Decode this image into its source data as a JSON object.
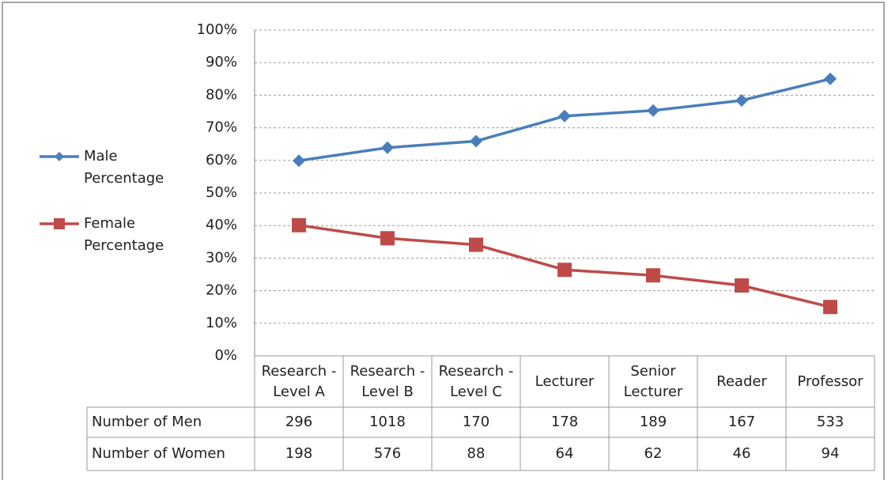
{
  "chart_data": {
    "type": "line",
    "categories": [
      "Research - Level A",
      "Research - Level B",
      "Research - Level C",
      "Lecturer",
      "Senior Lecturer",
      "Reader",
      "Professor"
    ],
    "series": [
      {
        "name": "Male Percentage",
        "color": "#4a7ebb",
        "marker": "diamond",
        "values": [
          59.9,
          63.9,
          65.9,
          73.6,
          75.3,
          78.4,
          85.0
        ]
      },
      {
        "name": "Female Percentage",
        "color": "#be4b48",
        "marker": "square",
        "values": [
          40.1,
          36.1,
          34.1,
          26.4,
          24.7,
          21.6,
          15.0
        ]
      }
    ],
    "ylim": [
      0,
      100
    ],
    "yticks": [
      {
        "value": 0,
        "label": "0%"
      },
      {
        "value": 10,
        "label": "10%"
      },
      {
        "value": 20,
        "label": "20%"
      },
      {
        "value": 30,
        "label": "30%"
      },
      {
        "value": 40,
        "label": "40%"
      },
      {
        "value": 50,
        "label": "50%"
      },
      {
        "value": 60,
        "label": "60%"
      },
      {
        "value": 70,
        "label": "70%"
      },
      {
        "value": 80,
        "label": "80%"
      },
      {
        "value": 90,
        "label": "90%"
      },
      {
        "value": 100,
        "label": "100%"
      }
    ],
    "grid": true,
    "legend": "left",
    "table": {
      "rows": [
        {
          "label": "Number of Men",
          "values": [
            296,
            1018,
            170,
            178,
            189,
            167,
            533
          ]
        },
        {
          "label": "Number of Women",
          "values": [
            198,
            576,
            88,
            64,
            62,
            46,
            94
          ]
        }
      ]
    }
  }
}
